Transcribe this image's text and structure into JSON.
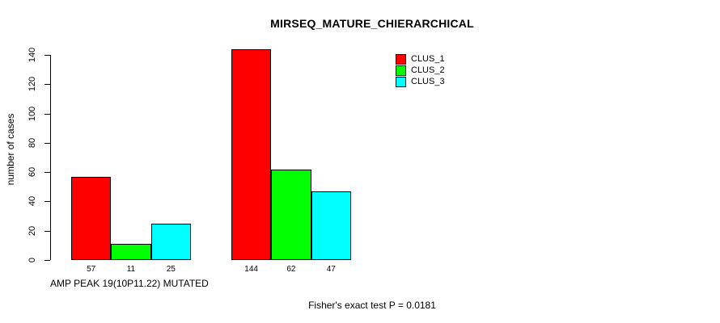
{
  "chart_data": {
    "type": "bar",
    "title": "MIRSEQ_MATURE_CHIERARCHICAL",
    "ylabel": "number of cases",
    "xlabel": "AMP PEAK 19(10P11.22) MUTATED",
    "annotation": "Fisher's exact test P = 0.0181",
    "categories": [
      "AMP PEAK 19(10P11.22) MUTATED",
      ""
    ],
    "series": [
      {
        "name": "CLUS_1",
        "color": "#FF0000",
        "values": [
          57,
          144
        ]
      },
      {
        "name": "CLUS_2",
        "color": "#00FF00",
        "values": [
          11,
          62
        ]
      },
      {
        "name": "CLUS_3",
        "color": "#00FFFF",
        "values": [
          25,
          47
        ]
      }
    ],
    "yticks": [
      0,
      20,
      40,
      60,
      80,
      100,
      120,
      140
    ],
    "ylim": [
      0,
      140
    ],
    "bar_value_labels_shown": true,
    "legend_position": "top-right",
    "grid": false,
    "background_color": "#FFFFFF",
    "axis_color": "#000000"
  }
}
